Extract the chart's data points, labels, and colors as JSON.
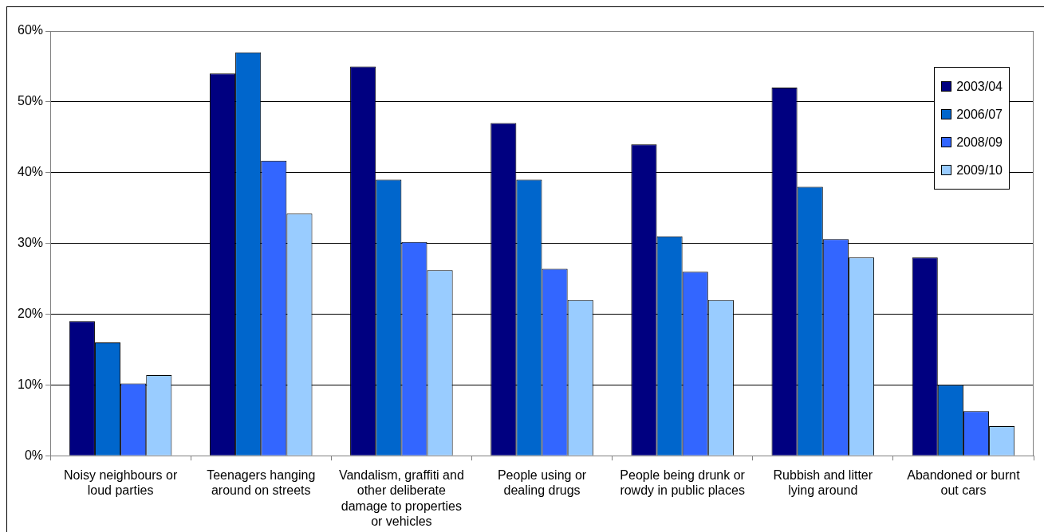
{
  "chart_data": {
    "type": "bar",
    "categories": [
      "Noisy neighbours or loud parties",
      "Teenagers hanging around on streets",
      "Vandalism, graffiti and other deliberate damage to properties or vehicles",
      "People using or dealing drugs",
      "People being drunk or rowdy in public places",
      "Rubbish and litter lying around",
      "Abandoned or burnt out cars"
    ],
    "series": [
      {
        "name": "2003/04",
        "color": "#000080",
        "values": [
          19,
          54,
          55,
          47,
          44,
          52,
          28
        ]
      },
      {
        "name": "2006/07",
        "color": "#0066cc",
        "values": [
          16,
          57,
          39,
          39,
          31,
          38,
          10
        ]
      },
      {
        "name": "2008/09",
        "color": "#3366ff",
        "values": [
          10.2,
          41.7,
          30.2,
          26.4,
          26,
          30.6,
          6.3
        ]
      },
      {
        "name": "2009/10",
        "color": "#99ccff",
        "values": [
          11.4,
          34.2,
          26.2,
          22,
          22,
          28,
          4.2
        ]
      }
    ],
    "ylim": [
      0,
      60
    ],
    "yticks": [
      {
        "value": 0,
        "label": "0%"
      },
      {
        "value": 10,
        "label": "10%"
      },
      {
        "value": 20,
        "label": "20%"
      },
      {
        "value": 30,
        "label": "30%"
      },
      {
        "value": 40,
        "label": "40%"
      },
      {
        "value": 50,
        "label": "50%"
      },
      {
        "value": 60,
        "label": "60%"
      }
    ],
    "grid": "y",
    "legend": "top right"
  }
}
